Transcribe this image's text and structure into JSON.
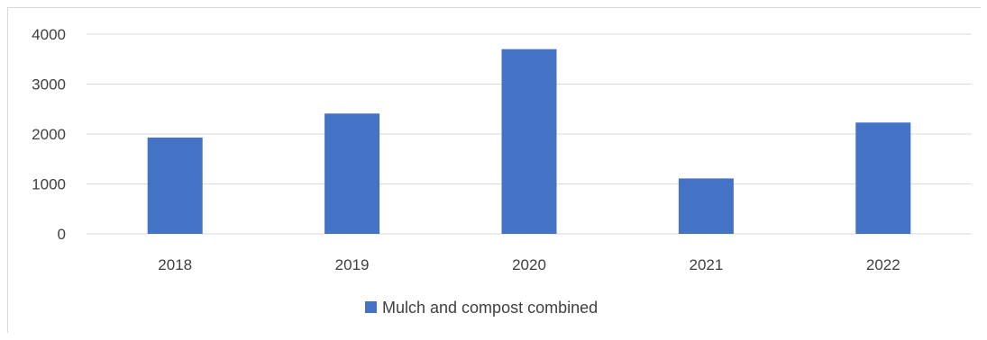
{
  "chart_data": {
    "type": "bar",
    "title": "",
    "xlabel": "",
    "ylabel": "",
    "categories": [
      "2018",
      "2019",
      "2020",
      "2021",
      "2022"
    ],
    "series": [
      {
        "name": "Mulch and compost combined",
        "values": [
          1930,
          2410,
          3700,
          1110,
          2230
        ],
        "color": "#4472C4"
      }
    ],
    "ylim": [
      0,
      4000
    ],
    "yticks": [
      0,
      1000,
      2000,
      3000,
      4000
    ],
    "ytick_labels": [
      "0",
      "1000",
      "2000",
      "3000",
      "4000"
    ],
    "grid": true,
    "legend_position": "bottom"
  }
}
